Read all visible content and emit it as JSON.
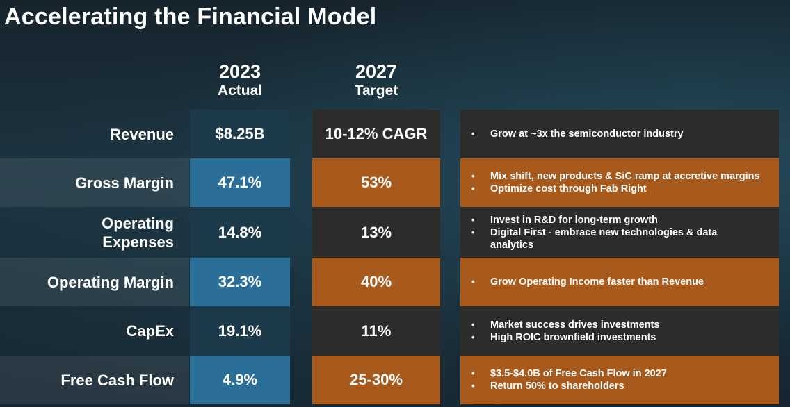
{
  "title": "Accelerating the Financial Model",
  "columns": {
    "actual": {
      "year": "2023",
      "label": "Actual"
    },
    "target": {
      "year": "2027",
      "label": "Target"
    }
  },
  "rows": [
    {
      "label": "Revenue",
      "actual": "$8.25B",
      "target": "10-12% CAGR",
      "notes": [
        "Grow at ~3x the semiconductor industry"
      ]
    },
    {
      "label": "Gross Margin",
      "actual": "47.1%",
      "target": "53%",
      "notes": [
        "Mix shift, new products & SiC ramp at accretive margins",
        "Optimize cost through Fab Right"
      ]
    },
    {
      "label_lines": [
        "Operating",
        "Expenses"
      ],
      "actual": "14.8%",
      "target": "13%",
      "notes": [
        "Invest in R&D for long-term growth",
        "Digital First - embrace new technologies & data analytics"
      ]
    },
    {
      "label": "Operating Margin",
      "actual": "32.3%",
      "target": "40%",
      "notes": [
        "Grow Operating Income faster than Revenue"
      ]
    },
    {
      "label": "CapEx",
      "actual": "19.1%",
      "target": "11%",
      "notes": [
        "Market success drives investments",
        "High ROIC brownfield investments"
      ]
    },
    {
      "label": "Free Cash Flow",
      "actual": "4.9%",
      "target": "25-30%",
      "notes": [
        "$3.5-$4.0B of Free Cash Flow in 2027",
        "Return 50% to shareholders"
      ]
    }
  ]
}
